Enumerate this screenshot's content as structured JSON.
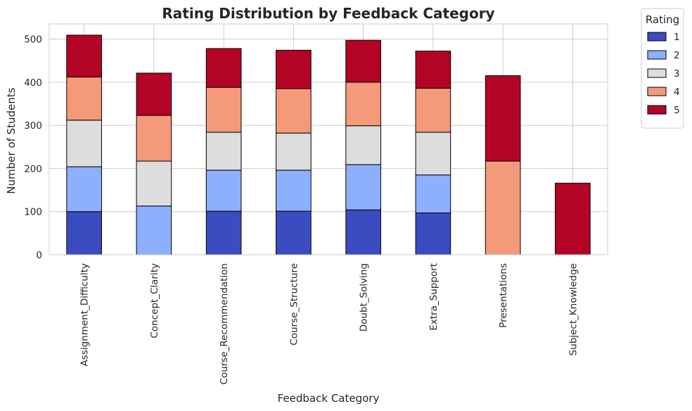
{
  "chart_data": {
    "type": "bar",
    "stacked": true,
    "title": "Rating Distribution by Feedback Category",
    "xlabel": "Feedback Category",
    "ylabel": "Number of Students",
    "ylim": [
      0,
      535
    ],
    "yticks": [
      0,
      100,
      200,
      300,
      400,
      500
    ],
    "grid": true,
    "legend_title": "Rating",
    "legend_position": "outside-top-right",
    "categories": [
      "Assignment_Difficulty",
      "Concept_Clarity",
      "Course_Recommendation",
      "Course_Structure",
      "Doubt_Solving",
      "Extra_Support",
      "Presentations",
      "Subject_Knowledge"
    ],
    "series": [
      {
        "name": "1",
        "color": "#3b4cc0",
        "values": [
          100,
          0,
          101,
          101,
          104,
          97,
          0,
          0
        ]
      },
      {
        "name": "2",
        "color": "#8db0fe",
        "values": [
          104,
          113,
          95,
          95,
          105,
          88,
          0,
          0
        ]
      },
      {
        "name": "3",
        "color": "#dddddd",
        "values": [
          108,
          104,
          88,
          86,
          90,
          99,
          0,
          0
        ]
      },
      {
        "name": "4",
        "color": "#f49a7b",
        "values": [
          100,
          106,
          104,
          103,
          101,
          102,
          217,
          0
        ]
      },
      {
        "name": "5",
        "color": "#b40426",
        "values": [
          97,
          98,
          90,
          89,
          97,
          86,
          198,
          166
        ]
      }
    ]
  }
}
